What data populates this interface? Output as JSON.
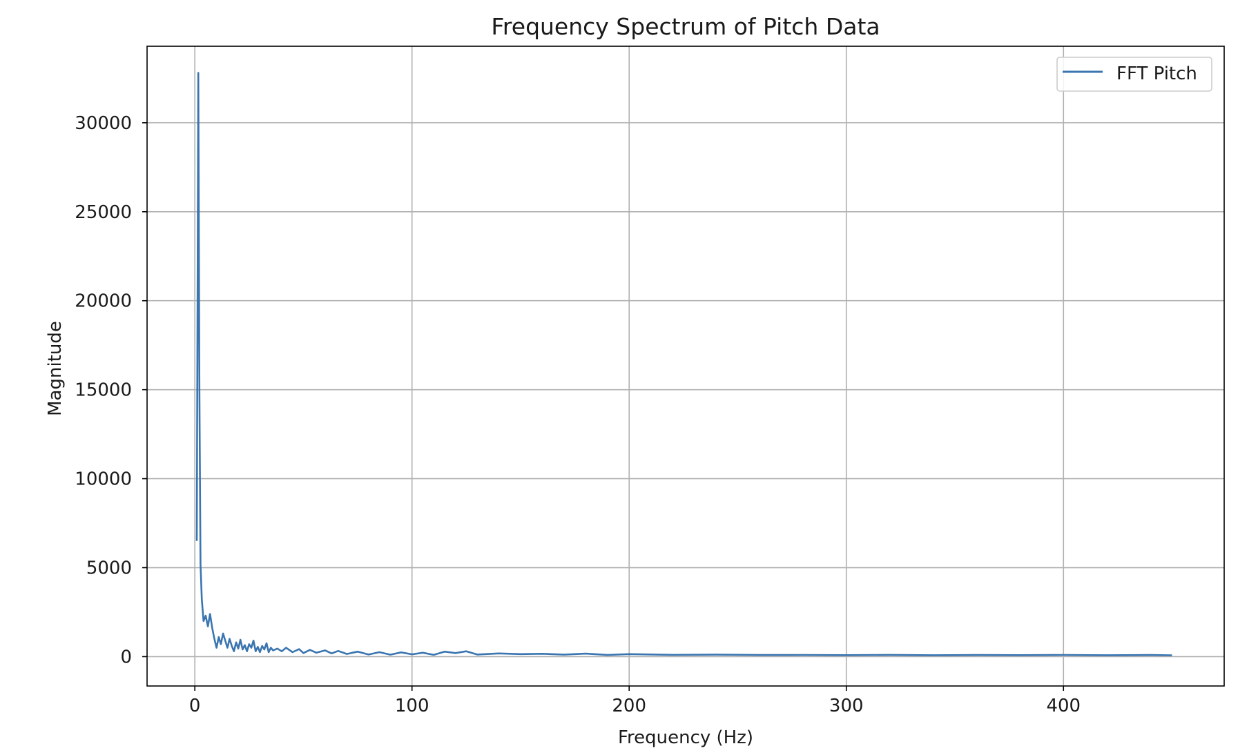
{
  "chart_data": {
    "type": "line",
    "title": "Frequency Spectrum of Pitch Data",
    "xlabel": "Frequency (Hz)",
    "ylabel": "Magnitude",
    "xlim": [
      -22,
      474
    ],
    "ylim": [
      -1650,
      34300
    ],
    "xticks": [
      0,
      100,
      200,
      300,
      400
    ],
    "yticks": [
      0,
      5000,
      10000,
      15000,
      20000,
      25000,
      30000
    ],
    "grid": true,
    "legend": {
      "position": "top-right",
      "entries": [
        "FFT Pitch"
      ]
    },
    "series": [
      {
        "name": "FFT Pitch",
        "color": "#3a75b0",
        "x": [
          0.9,
          1.6,
          2.1,
          2.6,
          3.2,
          4,
          5,
          6,
          7,
          8,
          9,
          10,
          11,
          12,
          13,
          14,
          15,
          16,
          17,
          18,
          19,
          20,
          21,
          22,
          23,
          24,
          25,
          26,
          27,
          28,
          29,
          30,
          31,
          32,
          33,
          34,
          35,
          36,
          38,
          40,
          42,
          45,
          48,
          50,
          53,
          56,
          60,
          63,
          66,
          70,
          75,
          80,
          85,
          90,
          95,
          100,
          105,
          110,
          115,
          120,
          125,
          130,
          140,
          150,
          160,
          170,
          180,
          190,
          200,
          220,
          240,
          260,
          280,
          300,
          320,
          340,
          360,
          380,
          400,
          420,
          440,
          450
        ],
        "values": [
          6500,
          32800,
          15000,
          5200,
          3200,
          2000,
          2300,
          1700,
          2400,
          1600,
          1000,
          500,
          1100,
          700,
          1300,
          900,
          500,
          1000,
          600,
          300,
          800,
          450,
          950,
          400,
          650,
          300,
          700,
          500,
          900,
          300,
          550,
          250,
          600,
          400,
          750,
          250,
          500,
          350,
          450,
          300,
          500,
          250,
          420,
          200,
          380,
          220,
          350,
          180,
          320,
          150,
          280,
          120,
          250,
          110,
          240,
          130,
          220,
          100,
          280,
          200,
          300,
          120,
          180,
          140,
          160,
          110,
          170,
          90,
          140,
          100,
          110,
          90,
          95,
          85,
          100,
          80,
          90,
          85,
          95,
          80,
          90,
          75
        ]
      }
    ]
  }
}
